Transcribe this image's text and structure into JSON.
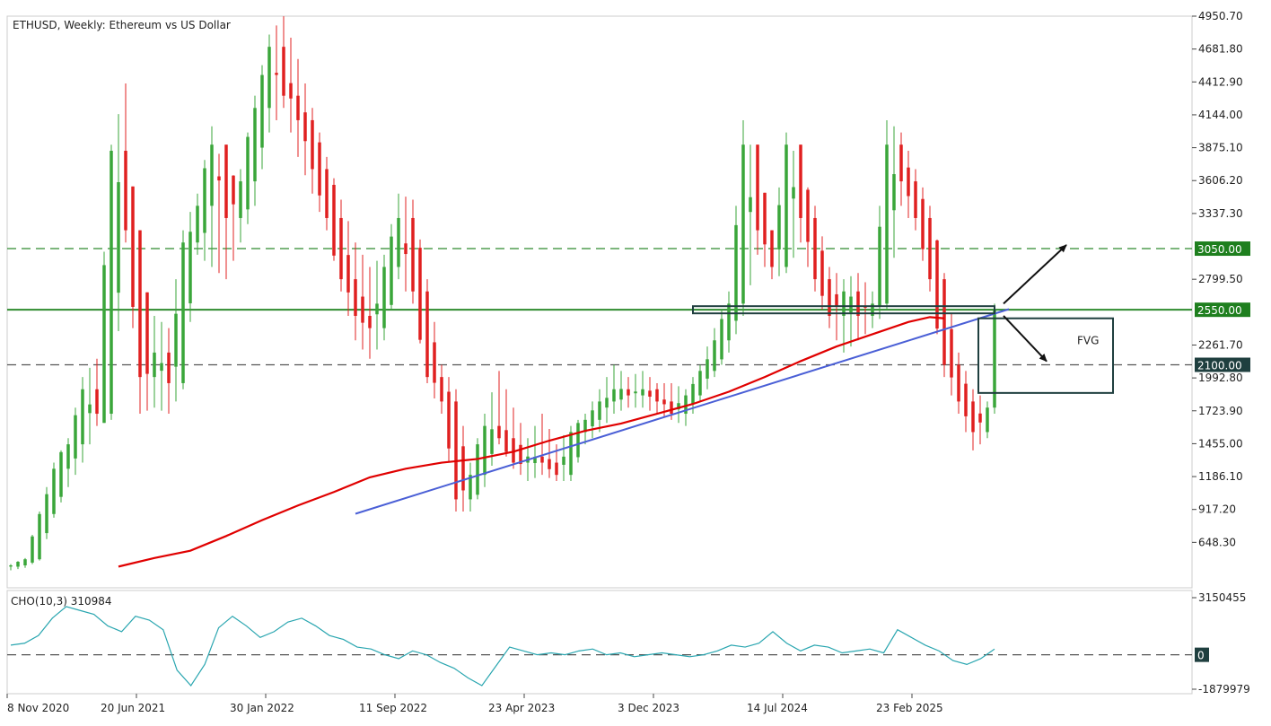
{
  "chart_data": {
    "type": "candlestick",
    "title": "ETHUSD, Weekly:  Ethereum vs US Dollar",
    "price_axis": {
      "ticks": [
        "4950.70",
        "4681.80",
        "4412.90",
        "4144.00",
        "3875.10",
        "3606.20",
        "3337.30",
        "2799.50",
        "2261.70",
        "1992.80",
        "1723.90",
        "1455.00",
        "1186.10",
        "917.20",
        "648.30"
      ],
      "ylim": [
        379.4,
        4950.7
      ]
    },
    "time_axis": {
      "labels": [
        "8 Nov 2020",
        "20 Jun 2021",
        "30 Jan 2022",
        "11 Sep 2022",
        "23 Apr 2023",
        "3 Dec 2023",
        "14 Jul 2024",
        "23 Feb 2025"
      ]
    },
    "levels": [
      {
        "label": "3050.00",
        "value": 3050.0,
        "style": "dashed",
        "color": "#2e8b2e"
      },
      {
        "label": "2550.00",
        "value": 2550.0,
        "style": "solid",
        "color": "#2e8b2e"
      },
      {
        "label": "2100.00",
        "value": 2100.0,
        "style": "dashed",
        "color": "#555555"
      }
    ],
    "annotations": {
      "fvg_label": "FVG"
    },
    "moving_average": {
      "color": "#e00000",
      "points": [
        [
          0,
          450
        ],
        [
          5,
          520
        ],
        [
          10,
          580
        ],
        [
          15,
          700
        ],
        [
          20,
          830
        ],
        [
          25,
          950
        ],
        [
          30,
          1060
        ],
        [
          35,
          1180
        ],
        [
          40,
          1250
        ],
        [
          45,
          1300
        ],
        [
          50,
          1330
        ],
        [
          55,
          1390
        ],
        [
          60,
          1480
        ],
        [
          65,
          1560
        ],
        [
          70,
          1620
        ],
        [
          75,
          1700
        ],
        [
          80,
          1780
        ],
        [
          85,
          1880
        ],
        [
          90,
          2000
        ],
        [
          95,
          2130
        ],
        [
          100,
          2250
        ],
        [
          105,
          2350
        ],
        [
          110,
          2450
        ],
        [
          113,
          2490
        ],
        [
          115,
          2480
        ]
      ]
    },
    "trendline": {
      "color": "#4a5fd6",
      "from": [
        0,
        882
      ],
      "to": [
        115,
        2555
      ]
    },
    "series_ohlc_sampled": [
      [
        0,
        450,
        470,
        420,
        460
      ],
      [
        2,
        460,
        520,
        440,
        510
      ],
      [
        4,
        510,
        900,
        500,
        880
      ],
      [
        6,
        880,
        1300,
        850,
        1250
      ],
      [
        8,
        1250,
        1500,
        1100,
        1450
      ],
      [
        10,
        1450,
        2000,
        1300,
        1900
      ],
      [
        12,
        1900,
        2150,
        1600,
        1700
      ],
      [
        14,
        1700,
        3900,
        1650,
        3850
      ],
      [
        16,
        3850,
        4400,
        3100,
        3200
      ],
      [
        18,
        3200,
        2700,
        1700,
        2000
      ],
      [
        20,
        2000,
        2500,
        1750,
        2200
      ],
      [
        22,
        2200,
        2400,
        1700,
        1950
      ],
      [
        24,
        1950,
        3200,
        1900,
        3100
      ],
      [
        26,
        3100,
        3500,
        3000,
        3400
      ],
      [
        28,
        3400,
        4050,
        2900,
        3900
      ],
      [
        30,
        3900,
        3600,
        2800,
        3300
      ],
      [
        32,
        3300,
        3700,
        3100,
        3600
      ],
      [
        34,
        3600,
        4300,
        3400,
        4200
      ],
      [
        36,
        4200,
        4800,
        4000,
        4700
      ],
      [
        38,
        4700,
        4950,
        4200,
        4300
      ],
      [
        40,
        4300,
        4600,
        3800,
        4100
      ],
      [
        42,
        4100,
        4200,
        3500,
        3700
      ],
      [
        44,
        3700,
        3800,
        3200,
        3300
      ],
      [
        46,
        3300,
        3450,
        2700,
        2800
      ],
      [
        48,
        2800,
        3100,
        2300,
        2500
      ],
      [
        50,
        2500,
        2900,
        2150,
        2400
      ],
      [
        52,
        2400,
        3000,
        2300,
        2900
      ],
      [
        54,
        2900,
        3500,
        2800,
        3300
      ],
      [
        56,
        3300,
        3450,
        2600,
        2700
      ],
      [
        58,
        2700,
        2800,
        1950,
        2000
      ],
      [
        60,
        2000,
        2100,
        1700,
        1800
      ],
      [
        62,
        1800,
        1900,
        900,
        1000
      ],
      [
        64,
        1000,
        1300,
        900,
        1200
      ],
      [
        66,
        1200,
        1700,
        1100,
        1600
      ],
      [
        68,
        1600,
        2050,
        1450,
        1500
      ],
      [
        70,
        1500,
        1750,
        1250,
        1300
      ],
      [
        72,
        1300,
        1500,
        1150,
        1350
      ],
      [
        74,
        1350,
        1700,
        1200,
        1300
      ],
      [
        76,
        1300,
        1450,
        1150,
        1200
      ],
      [
        78,
        1200,
        1600,
        1150,
        1550
      ],
      [
        80,
        1550,
        1700,
        1450,
        1650
      ],
      [
        82,
        1650,
        1900,
        1550,
        1800
      ],
      [
        84,
        1800,
        2100,
        1700,
        1900
      ],
      [
        86,
        1900,
        2000,
        1750,
        1850
      ],
      [
        88,
        1850,
        2050,
        1750,
        1900
      ],
      [
        90,
        1900,
        1950,
        1700,
        1800
      ],
      [
        92,
        1800,
        1950,
        1650,
        1700
      ],
      [
        94,
        1700,
        1900,
        1600,
        1850
      ],
      [
        96,
        1850,
        2100,
        1800,
        2050
      ],
      [
        98,
        2050,
        2400,
        2000,
        2300
      ],
      [
        100,
        2300,
        2700,
        2200,
        2600
      ],
      [
        102,
        2600,
        4100,
        2500,
        3900
      ],
      [
        104,
        3900,
        3700,
        3000,
        3200
      ],
      [
        106,
        3200,
        3100,
        2800,
        2900
      ],
      [
        108,
        2900,
        4000,
        2850,
        3900
      ],
      [
        110,
        3900,
        3700,
        3100,
        3300
      ],
      [
        112,
        3300,
        3400,
        2700,
        2800
      ],
      [
        114,
        2800,
        2900,
        2400,
        2500
      ],
      [
        116,
        2500,
        2800,
        2200,
        2700
      ],
      [
        118,
        2700,
        2850,
        2300,
        2500
      ],
      [
        120,
        2500,
        2700,
        2400,
        2600
      ],
      [
        122,
        2600,
        4100,
        2550,
        3900
      ],
      [
        124,
        3900,
        4000,
        3400,
        3600
      ],
      [
        126,
        3600,
        3700,
        3200,
        3300
      ],
      [
        128,
        3300,
        3400,
        2700,
        2800
      ],
      [
        130,
        2800,
        2850,
        2000,
        2100
      ],
      [
        132,
        2100,
        2200,
        1700,
        1800
      ],
      [
        134,
        1800,
        1900,
        1400,
        1550
      ],
      [
        136,
        1550,
        1800,
        1500,
        1750
      ],
      [
        137,
        1750,
        2600,
        1700,
        2550
      ]
    ]
  },
  "indicator": {
    "label": "CHO(10,3) 310984",
    "ticks": [
      "3150455",
      "0",
      "-1879979"
    ],
    "ylim": [
      -1879979,
      3150455
    ],
    "values": [
      0.5,
      0.6,
      1.0,
      1.9,
      2.5,
      2.3,
      2.1,
      1.5,
      1.2,
      2.0,
      1.8,
      1.3,
      -0.8,
      -1.6,
      -0.5,
      1.4,
      2.0,
      1.5,
      0.9,
      1.2,
      1.7,
      1.9,
      1.5,
      1.0,
      0.8,
      0.4,
      0.3,
      0.0,
      -0.2,
      0.2,
      0.0,
      -0.4,
      -0.7,
      -1.2,
      -1.6,
      -0.6,
      0.4,
      0.2,
      0.0,
      0.1,
      0.0,
      0.2,
      0.3,
      0.0,
      0.1,
      -0.1,
      0.0,
      0.1,
      0.0,
      -0.1,
      0.0,
      0.2,
      0.5,
      0.4,
      0.6,
      1.2,
      0.6,
      0.2,
      0.5,
      0.4,
      0.1,
      0.2,
      0.3,
      0.1,
      1.3,
      0.9,
      0.5,
      0.2,
      -0.3,
      -0.5,
      -0.2,
      0.3
    ]
  }
}
